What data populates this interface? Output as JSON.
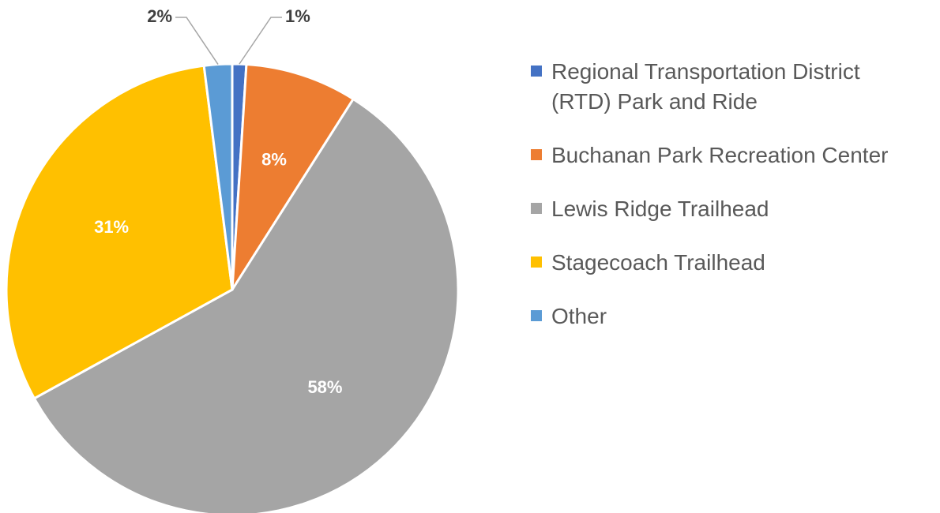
{
  "chart_data": {
    "type": "pie",
    "categories": [
      "Regional Transportation District (RTD) Park and Ride",
      "Buchanan Park Recreation Center",
      "Lewis Ridge Trailhead",
      "Stagecoach Trailhead",
      "Other"
    ],
    "values": [
      1,
      8,
      58,
      31,
      2
    ],
    "value_labels": [
      "1%",
      "8%",
      "58%",
      "31%",
      "2%"
    ],
    "colors": [
      "#4472c4",
      "#ed7d31",
      "#a5a5a5",
      "#ffc000",
      "#5b9bd5"
    ],
    "legend": "right"
  }
}
